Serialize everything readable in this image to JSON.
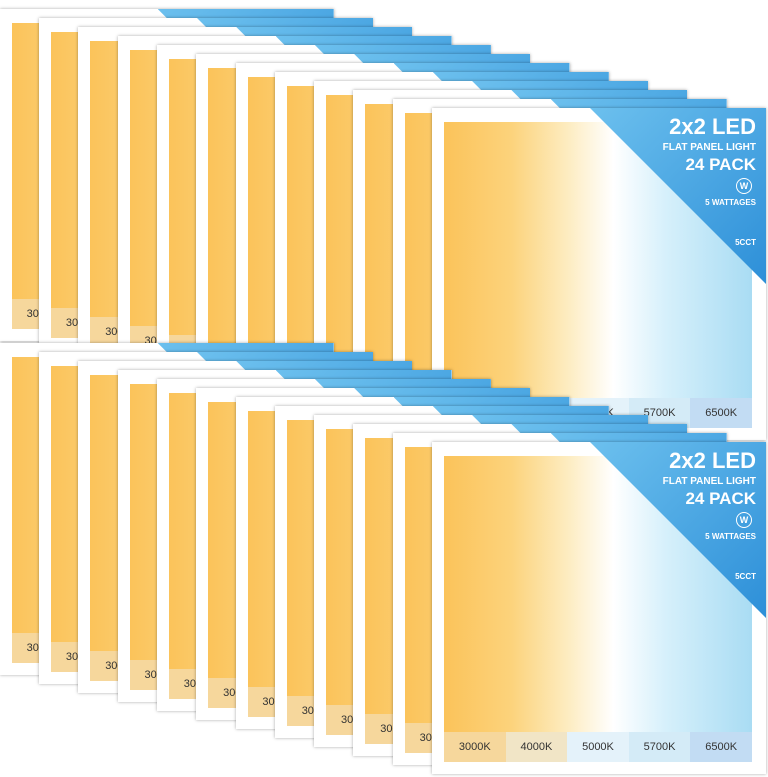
{
  "banner": {
    "title": "2x2 LED",
    "subtitle": "FLAT PANEL LIGHT",
    "pack": "24 PACK",
    "wattage_icon": "W",
    "wattages": "5 WATTAGES",
    "cct": "5CCT"
  },
  "color_temperatures": [
    "3000K",
    "4000K",
    "5000K",
    "5700K",
    "6500K"
  ]
}
